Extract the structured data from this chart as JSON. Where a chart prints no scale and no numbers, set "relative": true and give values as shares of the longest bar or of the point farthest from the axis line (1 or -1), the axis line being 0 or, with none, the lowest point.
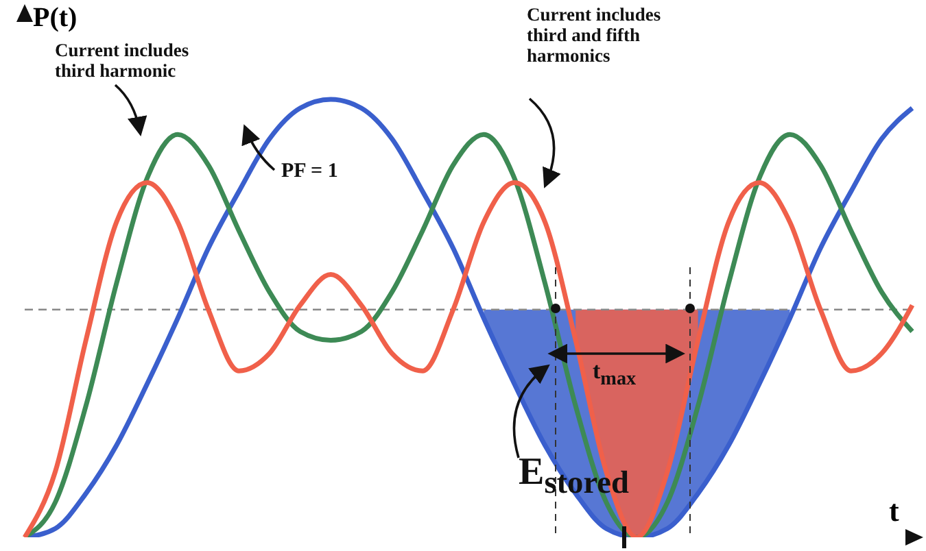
{
  "chart_data": {
    "type": "line",
    "relative": true,
    "xlabel": "t",
    "ylabel": "P(t)",
    "categories": [
      null,
      null,
      null,
      null,
      null,
      null,
      null,
      null,
      null,
      null,
      null,
      null,
      null,
      null,
      null,
      null,
      null,
      null,
      null,
      null,
      null,
      null,
      null,
      null,
      null,
      null,
      null,
      null,
      null,
      null
    ],
    "series": [
      {
        "color": "#3a5fcd",
        "values": [
          0,
          0.02,
          0.1,
          0.21,
          0.35,
          0.5,
          0.66,
          0.79,
          0.91,
          0.98,
          1,
          0.98,
          0.91,
          0.79,
          0.66,
          0.5,
          0.35,
          0.21,
          0.1,
          0.02,
          0,
          0.02,
          0.1,
          0.21,
          0.35,
          0.5,
          0.66,
          0.79,
          0.91,
          0.98
        ],
        "lower": [
          null,
          null,
          null,
          null,
          null,
          null,
          null,
          null,
          null,
          null,
          null,
          null,
          null,
          null,
          null,
          0.5,
          0.35,
          0.21,
          0.1,
          0.02,
          0,
          0.02,
          0.1,
          0.21,
          0.35,
          0.5,
          null,
          null,
          null,
          null
        ],
        "upper": [
          null,
          null,
          null,
          null,
          null,
          null,
          null,
          null,
          null,
          null,
          null,
          null,
          null,
          null,
          null,
          0.52,
          0.52,
          0.52,
          0.52,
          0.52,
          0.52,
          0.52,
          0.52,
          0.52,
          0.52,
          0.52,
          null,
          null,
          null,
          null
        ]
      },
      {
        "color": "#3d8a55",
        "values": [
          0,
          0.08,
          0.3,
          0.58,
          0.82,
          0.92,
          0.85,
          0.7,
          0.56,
          0.47,
          0.45,
          0.47,
          0.56,
          0.7,
          0.85,
          0.92,
          0.82,
          0.58,
          0.3,
          0.08,
          0,
          0.08,
          0.3,
          0.58,
          0.82,
          0.92,
          0.85,
          0.7,
          0.56,
          0.47
        ]
      },
      {
        "color": "#f0604a",
        "values": [
          0,
          0.15,
          0.45,
          0.72,
          0.81,
          0.72,
          0.52,
          0.38,
          0.42,
          0.53,
          0.6,
          0.53,
          0.42,
          0.38,
          0.52,
          0.72,
          0.81,
          0.72,
          0.45,
          0.15,
          0,
          0.15,
          0.45,
          0.72,
          0.81,
          0.72,
          0.52,
          0.38,
          0.42,
          0.53
        ],
        "lower": [
          null,
          null,
          null,
          null,
          null,
          null,
          null,
          null,
          null,
          null,
          null,
          null,
          null,
          null,
          null,
          null,
          null,
          null,
          0.45,
          0.15,
          0,
          0.15,
          0.45,
          null,
          null,
          null,
          null,
          null,
          null,
          null
        ],
        "upper": [
          null,
          null,
          null,
          null,
          null,
          null,
          null,
          null,
          null,
          null,
          null,
          null,
          null,
          null,
          null,
          null,
          null,
          null,
          0.52,
          0.52,
          0.52,
          0.52,
          0.52,
          null,
          null,
          null,
          null,
          null,
          null,
          null
        ]
      }
    ],
    "ref_lines": [
      {
        "axis": "y",
        "value": 0.52,
        "color": "#888888",
        "line_style": "dashed"
      }
    ],
    "annotations": [
      "Current includes third harmonic",
      "Current includes third and fifth harmonics",
      "PF = 1",
      "E$_{stored}$",
      "t$_{max}$"
    ]
  }
}
